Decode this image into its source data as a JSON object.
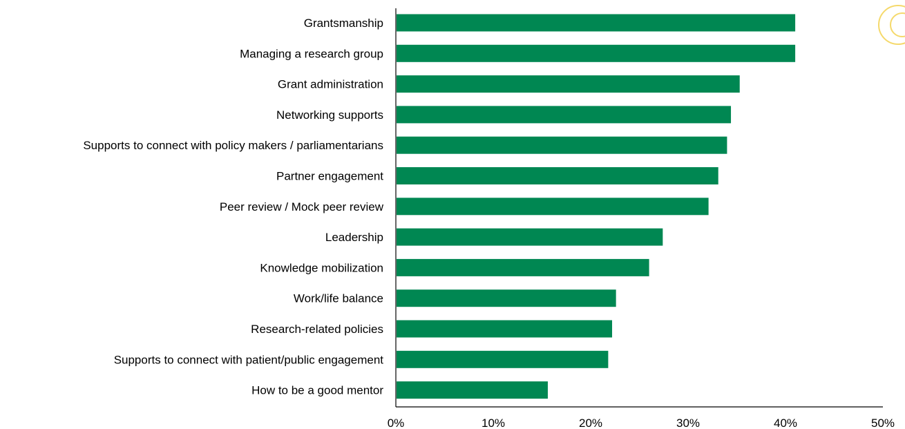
{
  "chart_data": {
    "type": "bar",
    "orientation": "horizontal",
    "categories": [
      "Grantsmanship",
      "Managing a research group",
      "Grant administration",
      "Networking supports",
      "Supports to connect with policy makers / parliamentarians",
      "Partner engagement",
      "Peer review / Mock peer review",
      "Leadership",
      "Knowledge mobilization",
      "Work/life balance",
      "Research-related policies",
      "Supports to connect with patient/public engagement",
      "How to be a good mentor"
    ],
    "values": [
      41.0,
      41.0,
      35.3,
      34.4,
      34.0,
      33.1,
      32.1,
      27.4,
      26.0,
      22.6,
      22.2,
      21.8,
      15.6
    ],
    "xlim": [
      0,
      50
    ],
    "xticks": [
      "0%",
      "10%",
      "20%",
      "30%",
      "40%",
      "50%"
    ],
    "title": "",
    "xlabel": "",
    "ylabel": "",
    "grid": false,
    "bar_color": "#008752"
  },
  "decoration": {
    "icon": "circle-logo-icon",
    "color": "#F5D96B"
  }
}
